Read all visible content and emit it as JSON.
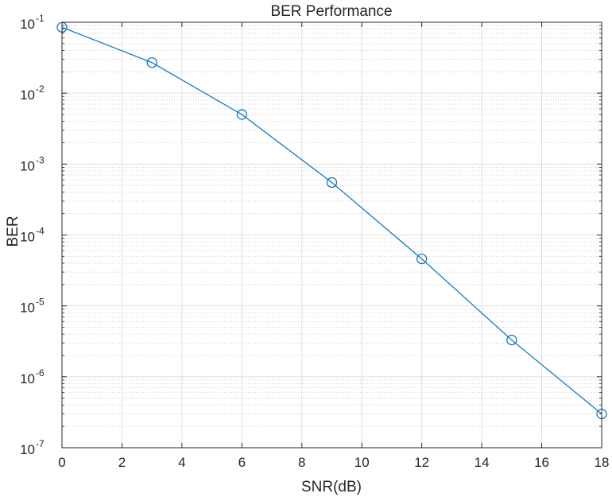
{
  "chart_data": {
    "type": "line",
    "title": "BER Performance",
    "xlabel": "SNR(dB)",
    "ylabel": "BER",
    "x": [
      0,
      3,
      6,
      9,
      12,
      15,
      18
    ],
    "series": [
      {
        "values": [
          0.085,
          0.027,
          0.005,
          0.00055,
          4.6e-05,
          3.3e-06,
          3e-07
        ],
        "marker": "circle"
      }
    ],
    "xlim": [
      0,
      18
    ],
    "ylim": [
      1e-07,
      0.1
    ],
    "yscale": "log",
    "xticks": [
      0,
      2,
      4,
      6,
      8,
      10,
      12,
      14,
      16,
      18
    ],
    "xtick_labels": [
      "0",
      "2",
      "4",
      "6",
      "8",
      "10",
      "12",
      "14",
      "16",
      "18"
    ],
    "yticks": [
      1e-07,
      1e-06,
      1e-05,
      0.0001,
      0.001,
      0.01,
      0.1
    ],
    "ytick_labels": [
      {
        "base": "10",
        "exp": "-7"
      },
      {
        "base": "10",
        "exp": "-6"
      },
      {
        "base": "10",
        "exp": "-5"
      },
      {
        "base": "10",
        "exp": "-4"
      },
      {
        "base": "10",
        "exp": "-3"
      },
      {
        "base": "10",
        "exp": "-2"
      },
      {
        "base": "10",
        "exp": "-1"
      }
    ],
    "grid": true,
    "minor_grid": true,
    "colors": {
      "line": "#0072BD",
      "axis": "#262626",
      "grid": "#dfdfdf"
    }
  }
}
